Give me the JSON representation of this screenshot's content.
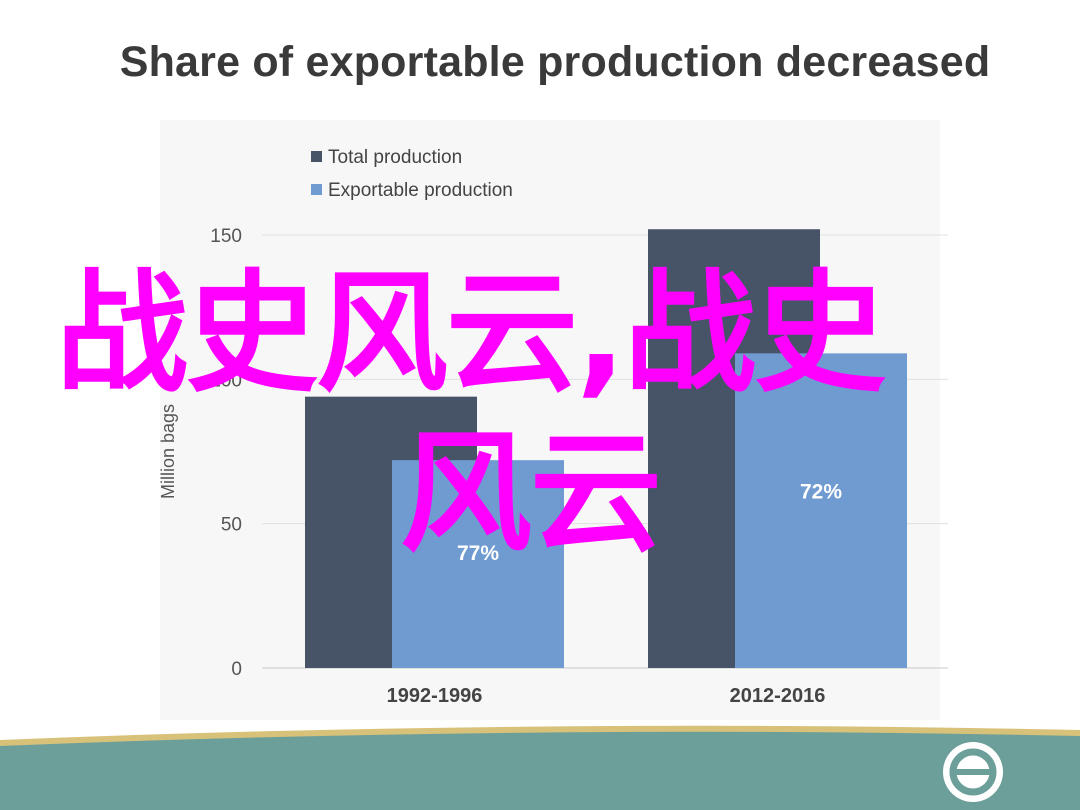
{
  "slide": {
    "title": "Share of exportable production decreased"
  },
  "overlay": {
    "line1": "战史风云,战史",
    "line2": "风云"
  },
  "colors": {
    "total": "#475468",
    "exportable": "#6f9bd1",
    "overlay": "#ff00ff",
    "footer": "#6d9f9a",
    "footer_stripe": "#d8c27a"
  },
  "chart_data": {
    "type": "bar",
    "title": "",
    "ylabel": "Million bags",
    "xlabel": "",
    "ylim": [
      0,
      150
    ],
    "yticks": [
      0,
      50,
      100,
      150
    ],
    "categories": [
      "1992-1996",
      "2012-2016"
    ],
    "legend_position": "top-left",
    "grid": true,
    "series": [
      {
        "name": "Total production",
        "values": [
          94,
          152
        ],
        "color": "#475468"
      },
      {
        "name": "Exportable production",
        "values": [
          72,
          109
        ],
        "color": "#6f9bd1"
      }
    ],
    "data_labels": [
      "77%",
      "72%"
    ]
  }
}
